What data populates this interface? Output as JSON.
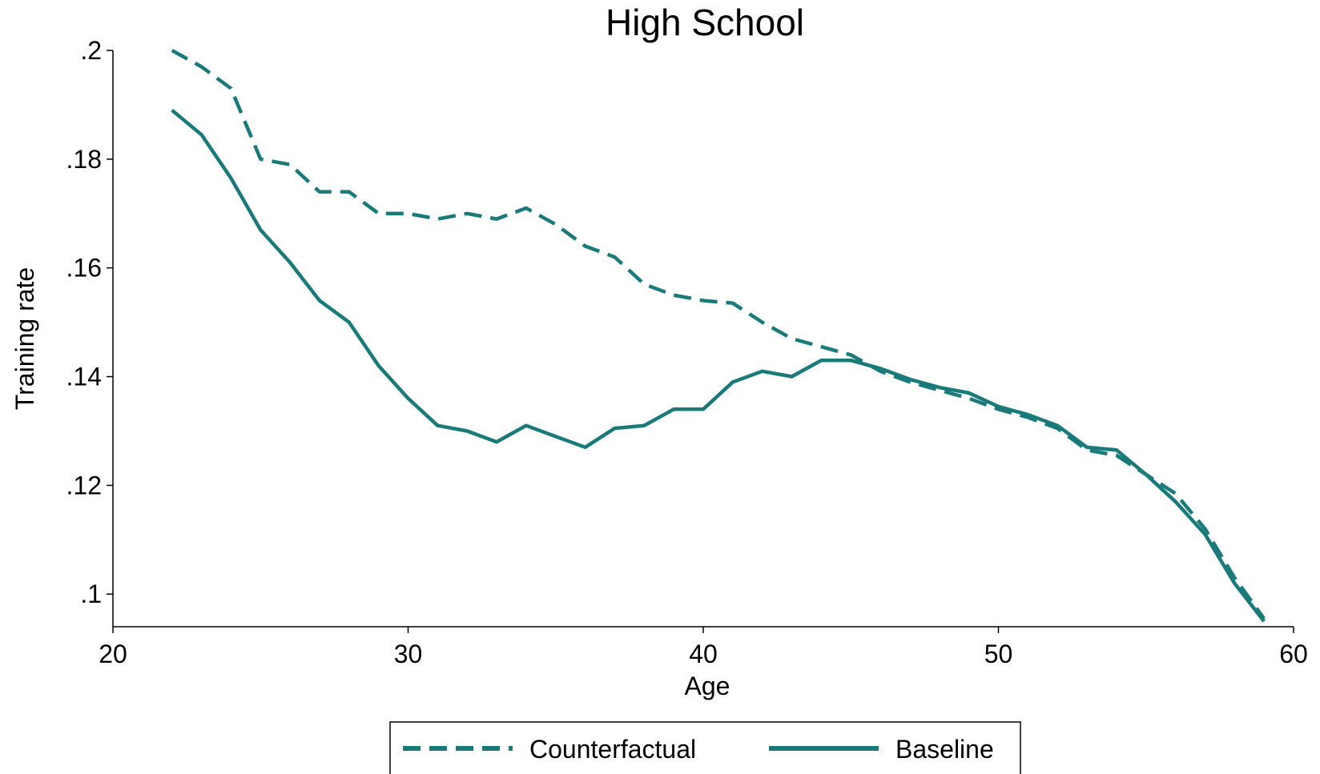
{
  "chart_data": {
    "type": "line",
    "title": "High School",
    "xlabel": "Age",
    "ylabel": "Training rate",
    "xlim": [
      20,
      60
    ],
    "ylim": [
      0.094,
      0.2
    ],
    "x_ticks": [
      20,
      30,
      40,
      50,
      60
    ],
    "x_tick_labels": [
      "20",
      "30",
      "40",
      "50",
      "60"
    ],
    "y_ticks": [
      0.1,
      0.12,
      0.14,
      0.16,
      0.18,
      0.2
    ],
    "y_tick_labels": [
      ".1",
      ".12",
      ".14",
      ".16",
      ".18",
      ".2"
    ],
    "grid": false,
    "legend_position": "bottom",
    "x": [
      22,
      23,
      24,
      25,
      26,
      27,
      28,
      29,
      30,
      31,
      32,
      33,
      34,
      35,
      36,
      37,
      38,
      39,
      40,
      41,
      42,
      43,
      44,
      45,
      46,
      47,
      48,
      49,
      50,
      51,
      52,
      53,
      54,
      55,
      56,
      57,
      58,
      59
    ],
    "series": [
      {
        "name": "Counterfactual",
        "style": "dashed",
        "color": "#1a7a7a",
        "values": [
          0.2,
          0.197,
          0.193,
          0.18,
          0.179,
          0.174,
          0.174,
          0.17,
          0.17,
          0.169,
          0.17,
          0.169,
          0.171,
          0.168,
          0.164,
          0.162,
          0.157,
          0.155,
          0.154,
          0.1535,
          0.15,
          0.147,
          0.1455,
          0.144,
          0.141,
          0.139,
          0.1375,
          0.136,
          0.134,
          0.1325,
          0.1305,
          0.1265,
          0.1255,
          0.122,
          0.1185,
          0.112,
          0.103,
          0.0955
        ]
      },
      {
        "name": "Baseline",
        "style": "solid",
        "color": "#1a7a7a",
        "values": [
          0.189,
          0.1845,
          0.1765,
          0.167,
          0.161,
          0.154,
          0.15,
          0.142,
          0.136,
          0.131,
          0.13,
          0.128,
          0.131,
          0.129,
          0.127,
          0.1305,
          0.131,
          0.134,
          0.134,
          0.139,
          0.141,
          0.14,
          0.143,
          0.143,
          0.1415,
          0.1395,
          0.138,
          0.137,
          0.1345,
          0.133,
          0.131,
          0.127,
          0.1265,
          0.122,
          0.117,
          0.111,
          0.102,
          0.095
        ]
      }
    ]
  }
}
